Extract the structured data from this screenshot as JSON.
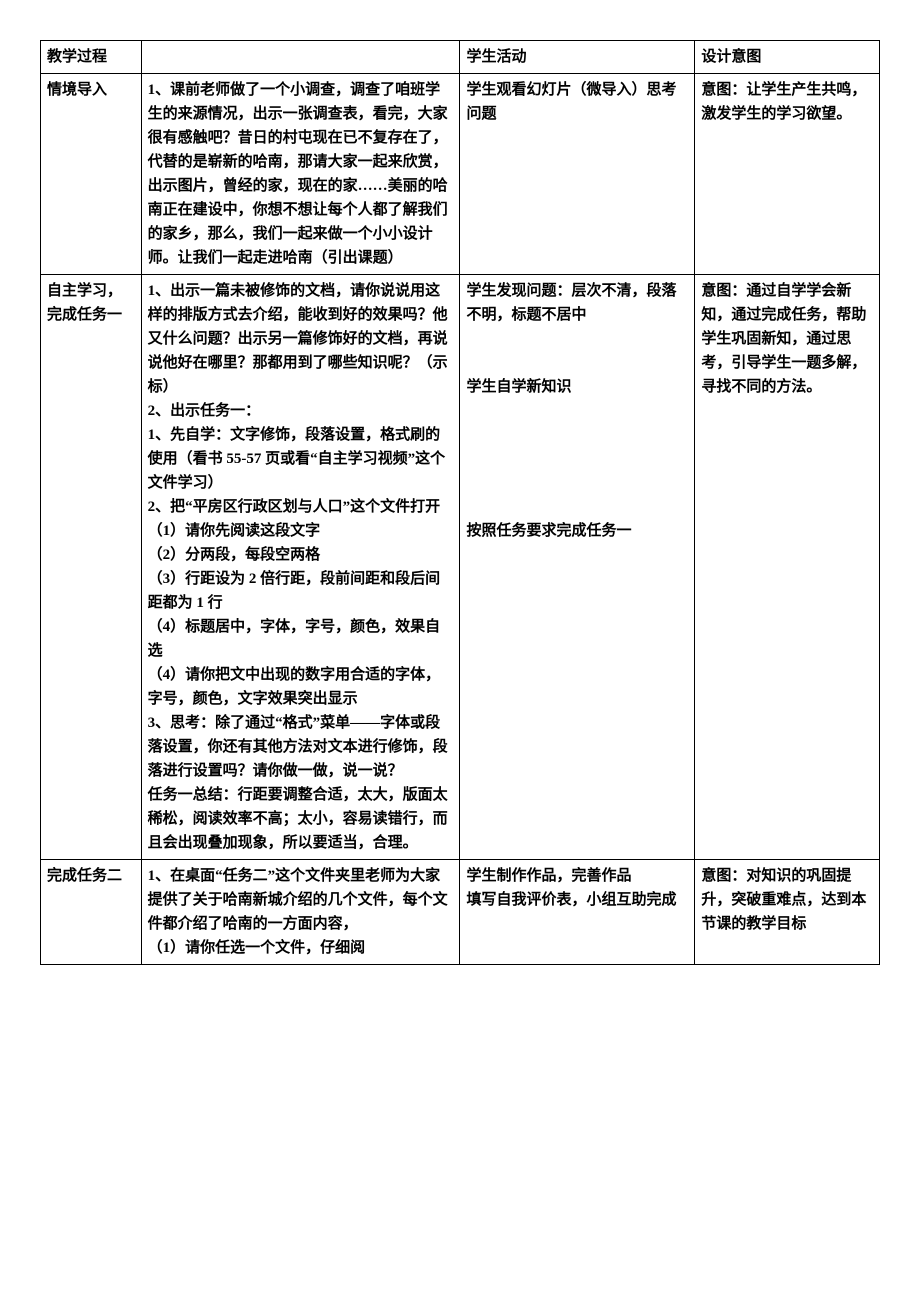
{
  "header": {
    "stage": "教学过程",
    "teach": "",
    "student": "学生活动",
    "intent": "设计意图"
  },
  "rows": [
    {
      "stage": "情境导入",
      "teach": "1、课前老师做了一个小调查，调查了咱班学生的来源情况，出示一张调查表，看完，大家很有感触吧？昔日的村屯现在已不复存在了，代替的是崭新的哈南，那请大家一起来欣赏，出示图片，曾经的家，现在的家……美丽的哈南正在建设中，你想不想让每个人都了解我们的家乡，那么，我们一起来做一个小小设计师。让我们一起走进哈南（引出课题）",
      "student": "学生观看幻灯片（微导入）思考问题",
      "intent": "意图：让学生产生共鸣，激发学生的学习欲望。"
    },
    {
      "stage": "自主学习，完成任务一",
      "teach": "1、出示一篇未被修饰的文档，请你说说用这样的排版方式去介绍，能收到好的效果吗？他又什么问题？出示另一篇修饰好的文档，再说说他好在哪里？那都用到了哪些知识呢？（示标）\n2、出示任务一：\n1、先自学：文字修饰，段落设置，格式刷的使用（看书 55-57 页或看“自主学习视频”这个文件学习）\n2、把“平房区行政区划与人口”这个文件打开\n（1）请你先阅读这段文字\n（2）分两段，每段空两格\n（3）行距设为 2 倍行距，段前间距和段后间距都为 1 行\n（4）标题居中，字体，字号，颜色，效果自选\n（4）请你把文中出现的数字用合适的字体，字号，颜色，文字效果突出显示\n3、思考：除了通过“格式”菜单——字体或段落设置，你还有其他方法对文本进行修饰，段落进行设置吗？请你做一做，说一说？\n任务一总结：行距要调整合适，太大，版面太稀松，阅读效率不高；太小，容易读错行，而且会出现叠加现象，所以要适当，合理。",
      "student": "学生发现问题：层次不清，段落不明，标题不居中\n\n\n学生自学新知识\n\n\n\n\n\n按照任务要求完成任务一",
      "intent": "意图：通过自学学会新知，通过完成任务，帮助学生巩固新知，通过思考，引导学生一题多解，寻找不同的方法。"
    },
    {
      "stage": "完成任务二",
      "teach": "1、在桌面“任务二”这个文件夹里老师为大家提供了关于哈南新城介绍的几个文件，每个文件都介绍了哈南的一方面内容，\n（1）请你任选一个文件，仔细阅",
      "student": "学生制作作品，完善作品\n填写自我评价表，小组互助完成",
      "intent": "意图：对知识的巩固提升，突破重难点，达到本节课的教学目标"
    }
  ]
}
